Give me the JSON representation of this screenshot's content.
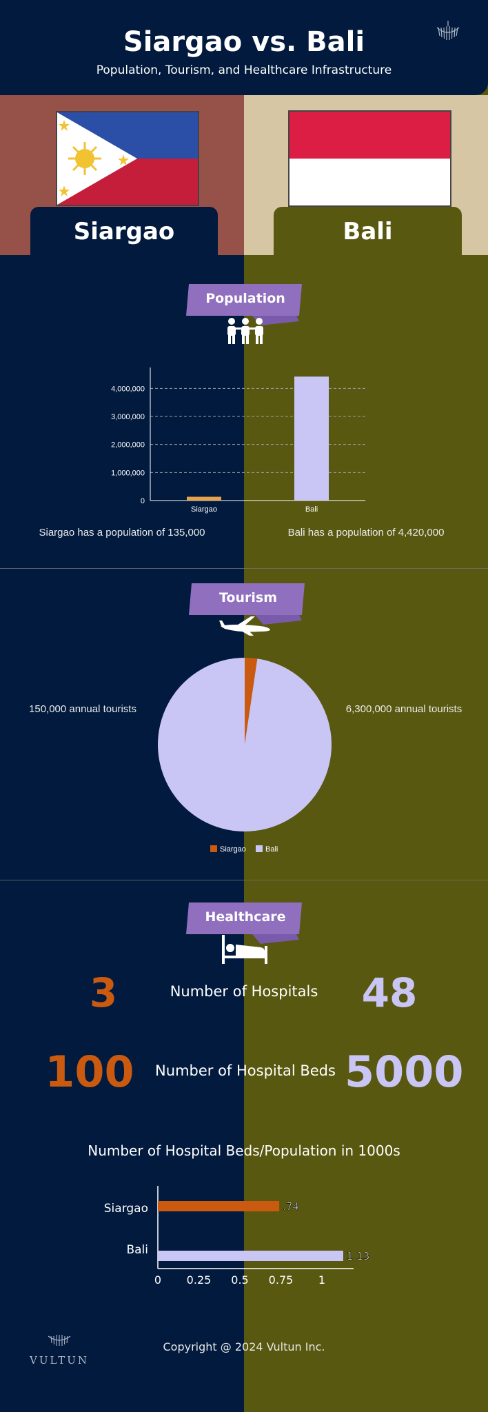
{
  "header": {
    "title": "Siargao vs. Bali",
    "subtitle": "Population, Tourism, and Healthcare Infrastructure"
  },
  "places": {
    "left": "Siargao",
    "right": "Bali"
  },
  "colors": {
    "navy": "#011a3d",
    "olive": "#585810",
    "siargao_accent": "#c95a10",
    "bali_accent": "#c9c6f5",
    "ribbon": "#8f6fbe",
    "pop_bar_siargao": "#e8a24a"
  },
  "sections": {
    "population": {
      "label": "Population",
      "icon": "people-icon",
      "caption_left": "Siargao has a population of 135,000",
      "caption_right": "Bali has a population of 4,420,000"
    },
    "tourism": {
      "label": "Tourism",
      "icon": "airplane-icon",
      "caption_left": "150,000 annual tourists",
      "caption_right": "6,300,000 annual tourists"
    },
    "healthcare": {
      "label": "Healthcare",
      "icon": "hospital-bed-icon",
      "hospitals_label": "Number of Hospitals",
      "hospitals_left": "3",
      "hospitals_right": "48",
      "beds_label": "Number of Hospital Beds",
      "beds_left": "100",
      "beds_right": "5000"
    }
  },
  "chart_data": [
    {
      "type": "bar",
      "categories": [
        "Siargao",
        "Bali"
      ],
      "values": [
        135000,
        4420000
      ],
      "yticks": [
        "0",
        "1,000,000",
        "2,000,000",
        "3,000,000",
        "4,000,000"
      ],
      "ylim": [
        0,
        4500000
      ],
      "grid": true
    },
    {
      "type": "pie",
      "labels": [
        "Siargao",
        "Bali"
      ],
      "values": [
        150000,
        6300000
      ],
      "colors": [
        "#c95a10",
        "#c9c6f5"
      ],
      "legend": "bottom"
    },
    {
      "type": "bar",
      "orientation": "horizontal",
      "title": "Number of Hospital Beds/Population in 1000s",
      "categories": [
        "Siargao",
        "Bali"
      ],
      "values": [
        0.74,
        1.13
      ],
      "value_labels": [
        ".74",
        "1.13"
      ],
      "xticks": [
        "0",
        "0.25",
        "0.5",
        "0.75",
        "1"
      ],
      "xlim": [
        0,
        1.2
      ],
      "colors": [
        "#c95a10",
        "#c9c6f5"
      ]
    }
  ],
  "footer": {
    "copyright": "Copyright @ 2024 Vultun Inc.",
    "brand": "VULTUN"
  }
}
